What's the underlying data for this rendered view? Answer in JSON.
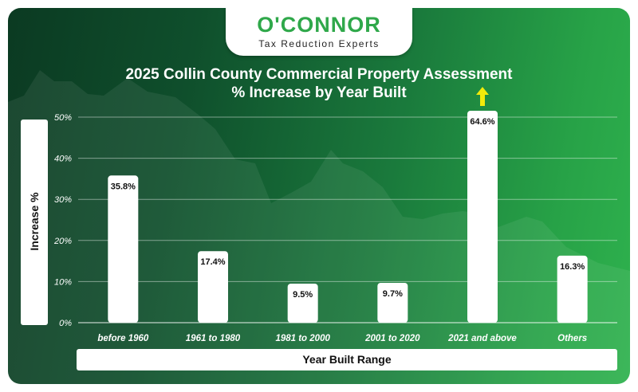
{
  "brand": {
    "name": "O'CONNOR",
    "tagline": "Tax Reduction Experts",
    "color": "#2fa84a"
  },
  "chart_data": {
    "type": "bar",
    "title_line1": "2025 Collin County Commercial Property Assessment",
    "title_line2": "% Increase by Year Built",
    "xlabel": "Year Built Range",
    "ylabel": "Increase %",
    "categories": [
      "before 1960",
      "1961 to 1980",
      "1981 to 2000",
      "2001 to 2020",
      "2021 and above",
      "Others"
    ],
    "values": [
      35.8,
      17.4,
      9.5,
      9.7,
      64.6,
      16.3
    ],
    "value_labels": [
      "35.8%",
      "17.4%",
      "9.5%",
      "9.7%",
      "64.6%",
      "16.3%"
    ],
    "ylim": [
      0,
      50
    ],
    "yticks": [
      0,
      10,
      20,
      30,
      40,
      50
    ],
    "ytick_labels": [
      "0%",
      "10%",
      "20%",
      "30%",
      "40%",
      "50%"
    ],
    "grid": true,
    "overflow_indicator": "arrow-up on bars exceeding the axis maximum",
    "colors": {
      "bar": "#ffffff",
      "arrow": "#f2ea0a",
      "gridline": "#ffffff"
    }
  }
}
